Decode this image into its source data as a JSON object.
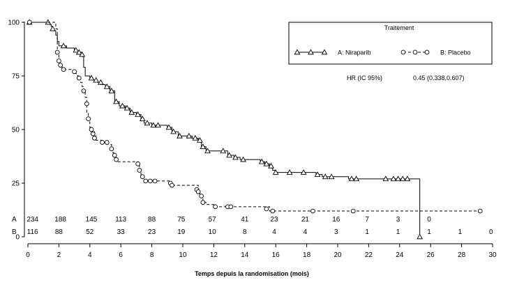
{
  "chart_data": {
    "type": "line",
    "xlabel": "Temps depuis la randomisation (mois)",
    "ylabel": "",
    "xlim": [
      0,
      30
    ],
    "ylim": [
      0,
      100
    ],
    "x_ticks": [
      0,
      2,
      4,
      6,
      8,
      10,
      12,
      14,
      16,
      18,
      20,
      22,
      24,
      26,
      28,
      30
    ],
    "y_ticks": [
      0,
      25,
      50,
      75,
      100
    ],
    "grid": false,
    "legend": {
      "title": "Traitement",
      "placement": "top-right",
      "hr_label": "HR (IC 95%)",
      "hr_value": "0.45 (0.338,0.607)"
    },
    "series": [
      {
        "name": "A: Niraparib",
        "short": "A",
        "marker": "triangle",
        "line_style": "solid",
        "color": "#000000",
        "steps": [
          [
            0,
            100
          ],
          [
            1.2,
            100
          ],
          [
            1.4,
            99
          ],
          [
            1.5,
            98
          ],
          [
            1.6,
            97
          ],
          [
            1.7,
            96
          ],
          [
            1.8,
            94
          ],
          [
            1.9,
            91
          ],
          [
            2.0,
            89
          ],
          [
            2.2,
            89
          ],
          [
            2.5,
            88
          ],
          [
            3.0,
            87
          ],
          [
            3.2,
            86
          ],
          [
            3.5,
            84
          ],
          [
            3.6,
            79
          ],
          [
            3.7,
            75
          ],
          [
            4.0,
            74
          ],
          [
            4.2,
            73
          ],
          [
            4.5,
            72
          ],
          [
            4.7,
            71
          ],
          [
            5.0,
            70
          ],
          [
            5.3,
            68
          ],
          [
            5.6,
            63
          ],
          [
            5.9,
            61
          ],
          [
            6.3,
            60
          ],
          [
            6.6,
            58
          ],
          [
            7.0,
            57
          ],
          [
            7.3,
            55
          ],
          [
            7.5,
            53
          ],
          [
            8.0,
            52
          ],
          [
            9.0,
            51
          ],
          [
            9.3,
            49
          ],
          [
            9.7,
            47
          ],
          [
            10.2,
            47
          ],
          [
            10.6,
            46
          ],
          [
            11.0,
            45
          ],
          [
            11.2,
            42
          ],
          [
            11.5,
            40
          ],
          [
            12.5,
            40
          ],
          [
            12.9,
            38
          ],
          [
            13.3,
            37
          ],
          [
            13.7,
            36
          ],
          [
            14.3,
            36
          ],
          [
            15.0,
            35
          ],
          [
            15.3,
            34
          ],
          [
            15.6,
            33
          ],
          [
            15.8,
            31
          ],
          [
            16.0,
            30
          ],
          [
            18.6,
            29
          ],
          [
            19.0,
            28
          ],
          [
            20.7,
            27
          ],
          [
            25.3,
            27
          ],
          [
            25.3,
            0
          ]
        ],
        "censors": [
          [
            0.1,
            100
          ],
          [
            1.3,
            100
          ],
          [
            1.6,
            97
          ],
          [
            2.3,
            89
          ],
          [
            3.1,
            87
          ],
          [
            3.3,
            86
          ],
          [
            3.5,
            85
          ],
          [
            4.1,
            74
          ],
          [
            4.4,
            73
          ],
          [
            4.7,
            72
          ],
          [
            5.1,
            70
          ],
          [
            5.4,
            68
          ],
          [
            5.7,
            63
          ],
          [
            6.1,
            61
          ],
          [
            6.4,
            60
          ],
          [
            6.7,
            58
          ],
          [
            7.1,
            57
          ],
          [
            7.4,
            55
          ],
          [
            7.7,
            53
          ],
          [
            8.1,
            52
          ],
          [
            8.4,
            52
          ],
          [
            9.1,
            51
          ],
          [
            9.4,
            49
          ],
          [
            9.8,
            47
          ],
          [
            10.4,
            47
          ],
          [
            10.8,
            46
          ],
          [
            11.1,
            45
          ],
          [
            11.3,
            42
          ],
          [
            11.6,
            40
          ],
          [
            12.6,
            40
          ],
          [
            13.0,
            38
          ],
          [
            13.4,
            37
          ],
          [
            13.9,
            36
          ],
          [
            15.1,
            35
          ],
          [
            15.4,
            34
          ],
          [
            15.7,
            33
          ],
          [
            16.0,
            30
          ],
          [
            16.9,
            30
          ],
          [
            17.8,
            30
          ],
          [
            18.7,
            29
          ],
          [
            19.2,
            28
          ],
          [
            19.6,
            28
          ],
          [
            20.9,
            27
          ],
          [
            21.2,
            27
          ],
          [
            23.1,
            27
          ],
          [
            23.6,
            27
          ],
          [
            23.9,
            27
          ],
          [
            24.2,
            27
          ],
          [
            24.5,
            27
          ],
          [
            25.3,
            0
          ]
        ]
      },
      {
        "name": "B: Placebo",
        "short": "B",
        "marker": "circle",
        "line_style": "dashed",
        "color": "#000000",
        "steps": [
          [
            0,
            100
          ],
          [
            1.7,
            100
          ],
          [
            1.8,
            97
          ],
          [
            1.9,
            86
          ],
          [
            2.0,
            82
          ],
          [
            2.1,
            80
          ],
          [
            2.2,
            78
          ],
          [
            2.9,
            77
          ],
          [
            3.1,
            76
          ],
          [
            3.2,
            75
          ],
          [
            3.3,
            74
          ],
          [
            3.4,
            72
          ],
          [
            3.5,
            70
          ],
          [
            3.6,
            68
          ],
          [
            3.7,
            65
          ],
          [
            3.8,
            58
          ],
          [
            3.9,
            54
          ],
          [
            4.0,
            51
          ],
          [
            4.1,
            49
          ],
          [
            4.3,
            47
          ],
          [
            4.4,
            45
          ],
          [
            4.8,
            44
          ],
          [
            5.2,
            43
          ],
          [
            5.4,
            41
          ],
          [
            5.5,
            39
          ],
          [
            5.6,
            37
          ],
          [
            5.7,
            35
          ],
          [
            7.1,
            34
          ],
          [
            7.2,
            30
          ],
          [
            7.3,
            28
          ],
          [
            7.5,
            26
          ],
          [
            9.2,
            25
          ],
          [
            9.4,
            24
          ],
          [
            11.0,
            21
          ],
          [
            11.1,
            19
          ],
          [
            11.3,
            16
          ],
          [
            11.5,
            15
          ],
          [
            12.0,
            14
          ],
          [
            15.6,
            12
          ],
          [
            29.2,
            12
          ]
        ],
        "censors": [
          [
            0.1,
            100
          ],
          [
            1.9,
            86
          ],
          [
            2.0,
            82
          ],
          [
            2.1,
            80
          ],
          [
            2.3,
            78
          ],
          [
            3.0,
            77
          ],
          [
            3.3,
            74
          ],
          [
            3.6,
            68
          ],
          [
            3.8,
            62
          ],
          [
            3.9,
            55
          ],
          [
            4.1,
            50
          ],
          [
            4.2,
            48
          ],
          [
            4.3,
            46
          ],
          [
            4.8,
            44
          ],
          [
            5.1,
            44
          ],
          [
            5.4,
            41
          ],
          [
            5.6,
            38
          ],
          [
            5.7,
            36
          ],
          [
            7.1,
            34
          ],
          [
            7.2,
            31
          ],
          [
            7.4,
            28
          ],
          [
            7.6,
            26
          ],
          [
            7.9,
            26
          ],
          [
            8.2,
            26
          ],
          [
            9.2,
            25
          ],
          [
            9.3,
            24
          ],
          [
            10.9,
            22
          ],
          [
            11.0,
            21
          ],
          [
            11.2,
            19
          ],
          [
            11.3,
            16
          ],
          [
            12.1,
            14
          ],
          [
            12.9,
            14
          ],
          [
            13.1,
            14
          ],
          [
            15.4,
            13
          ],
          [
            15.8,
            12
          ],
          [
            18.4,
            12
          ],
          [
            21.0,
            12
          ],
          [
            29.2,
            12
          ]
        ]
      }
    ],
    "risk_table": {
      "label_x": -1.1,
      "rows": [
        {
          "label": "A",
          "cells": [
            {
              "x": 0.3,
              "value": "234"
            },
            {
              "x": 2.1,
              "value": "188"
            },
            {
              "x": 4.1,
              "value": "145"
            },
            {
              "x": 6.0,
              "value": "113"
            },
            {
              "x": 8.0,
              "value": "88"
            },
            {
              "x": 9.9,
              "value": "75"
            },
            {
              "x": 11.9,
              "value": "57"
            },
            {
              "x": 14.0,
              "value": "41"
            },
            {
              "x": 15.9,
              "value": "23"
            },
            {
              "x": 17.9,
              "value": "21"
            },
            {
              "x": 19.9,
              "value": "16"
            },
            {
              "x": 21.9,
              "value": "7"
            },
            {
              "x": 23.9,
              "value": "3"
            },
            {
              "x": 25.9,
              "value": "0"
            }
          ]
        },
        {
          "label": "B",
          "cells": [
            {
              "x": 0.3,
              "value": "116"
            },
            {
              "x": 2.0,
              "value": "88"
            },
            {
              "x": 4.0,
              "value": "52"
            },
            {
              "x": 6.0,
              "value": "33"
            },
            {
              "x": 8.0,
              "value": "23"
            },
            {
              "x": 9.9,
              "value": "19"
            },
            {
              "x": 11.9,
              "value": "10"
            },
            {
              "x": 14.0,
              "value": "8"
            },
            {
              "x": 15.9,
              "value": "4"
            },
            {
              "x": 17.9,
              "value": "4"
            },
            {
              "x": 19.9,
              "value": "3"
            },
            {
              "x": 21.9,
              "value": "1"
            },
            {
              "x": 23.9,
              "value": "1"
            },
            {
              "x": 25.9,
              "value": "1"
            },
            {
              "x": 27.9,
              "value": "1"
            },
            {
              "x": 29.9,
              "value": "0"
            }
          ]
        }
      ]
    }
  }
}
